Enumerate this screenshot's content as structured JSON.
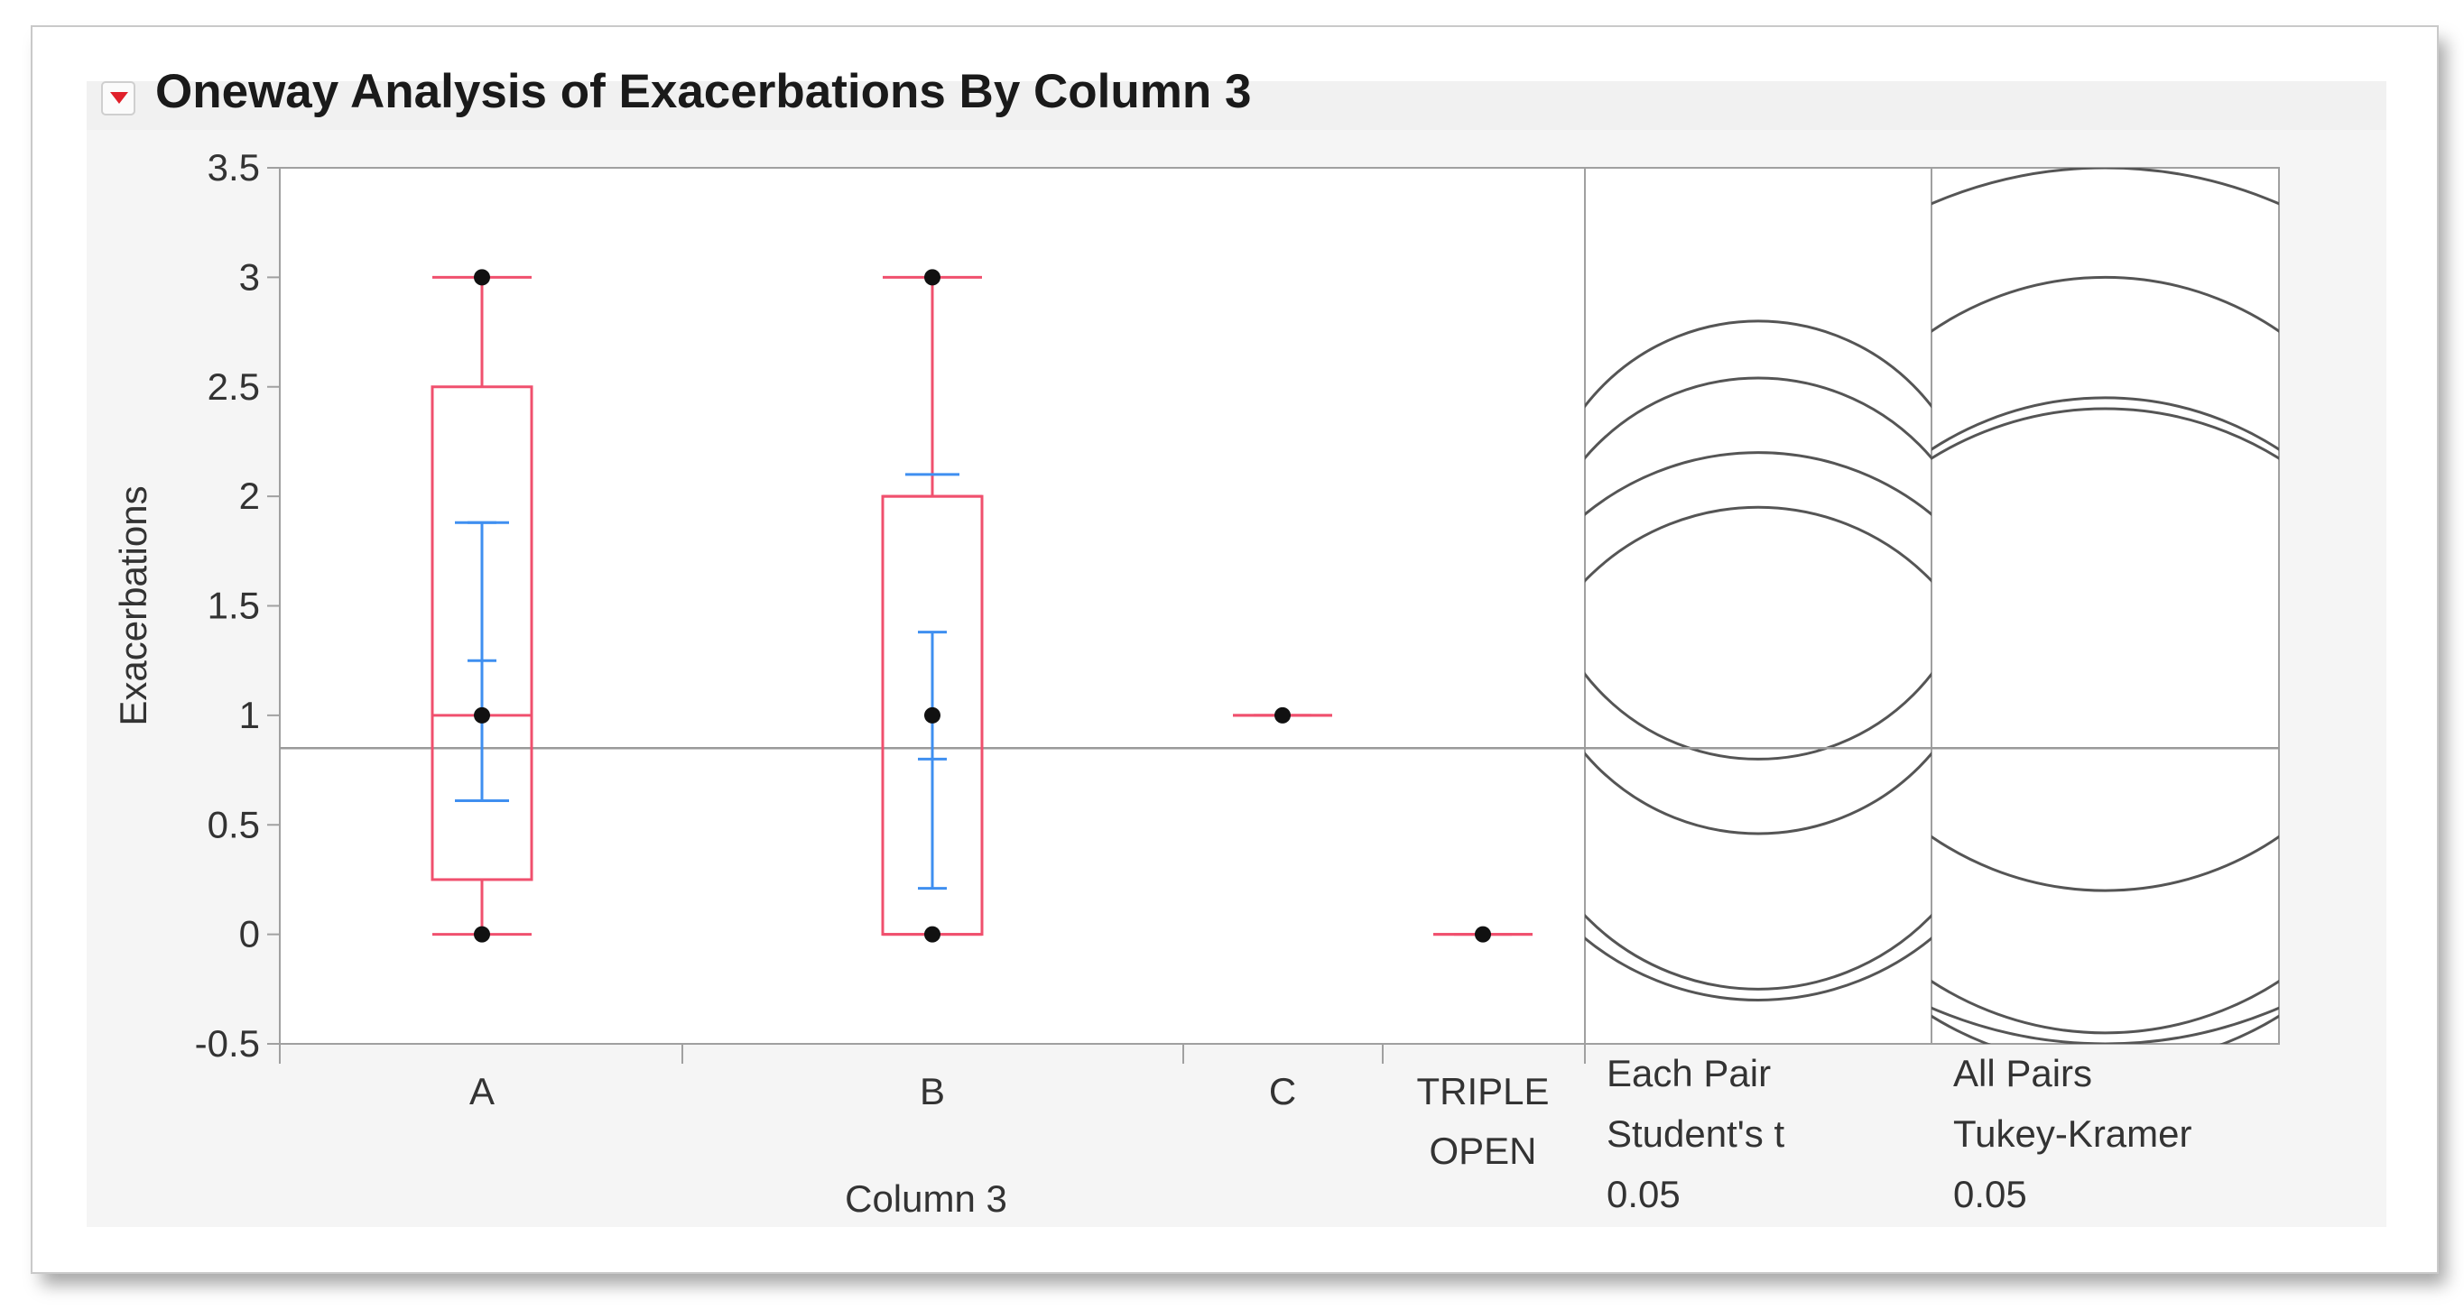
{
  "header": {
    "title": "Oneway Analysis of Exacerbations By Column 3",
    "disclosure_icon": "red-triangle-menu-icon"
  },
  "colors": {
    "box": "#f0506e",
    "mean_bars": "#3f8ff0",
    "points": "#111111",
    "grand_mean": "#9a9a9a",
    "circles": "#555555",
    "frame": "#a0a0a0"
  },
  "chart_data": {
    "type": "box",
    "title": "Oneway Analysis of Exacerbations By Column 3",
    "xlabel": "Column 3",
    "ylabel": "Exacerbations",
    "ylim": [
      -0.5,
      3.5
    ],
    "yticks": [
      "3.5",
      "3",
      "2.5",
      "2",
      "1.5",
      "1",
      "0.5",
      "0",
      "-0.5"
    ],
    "grand_mean": 0.85,
    "categories": [
      {
        "label": "A",
        "box": {
          "min": 0,
          "q1": 0.25,
          "median": 1,
          "q3": 2.5,
          "max": 3
        },
        "mean": 1.25,
        "mean_ci": [
          0.61,
          1.88
        ],
        "std_dev_marks": [
          0.61,
          1.88
        ],
        "points": [
          3,
          1,
          0
        ]
      },
      {
        "label": "B",
        "box": {
          "min": 0,
          "q1": 0,
          "median": 2,
          "q3": 2,
          "max": 3
        },
        "mean": 0.8,
        "mean_ci": [
          0.21,
          1.38
        ],
        "std_dev_marks": [
          2.1
        ],
        "points": [
          3,
          1,
          0
        ]
      },
      {
        "label": "C",
        "box": {
          "min": 1,
          "q1": 1,
          "median": 1,
          "q3": 1,
          "max": 1
        },
        "points": [
          1
        ]
      },
      {
        "label": "TRIPLE OPEN",
        "label_lines": [
          "TRIPLE",
          "OPEN"
        ],
        "box": {
          "min": 0,
          "q1": 0,
          "median": 0,
          "q3": 0,
          "max": 0
        },
        "points": [
          0
        ]
      }
    ],
    "comparison_circles": [
      {
        "test_lines": [
          "Each Pair",
          "Student's t",
          "0.05"
        ],
        "circles": [
          {
            "center": 1.8,
            "radius": 1.0
          },
          {
            "center": 1.5,
            "radius": 1.04
          },
          {
            "center": 0.85,
            "radius": 1.1
          },
          {
            "center": 0.95,
            "radius": 1.25
          }
        ]
      },
      {
        "test_lines": [
          "All Pairs",
          "Tukey-Kramer",
          "0.05"
        ],
        "circles": [
          {
            "center": 1.5,
            "radius": 2.0
          },
          {
            "center": 1.6,
            "radius": 1.4
          },
          {
            "center": 0.9,
            "radius": 1.5
          },
          {
            "center": 1.0,
            "radius": 1.45
          }
        ]
      }
    ]
  }
}
